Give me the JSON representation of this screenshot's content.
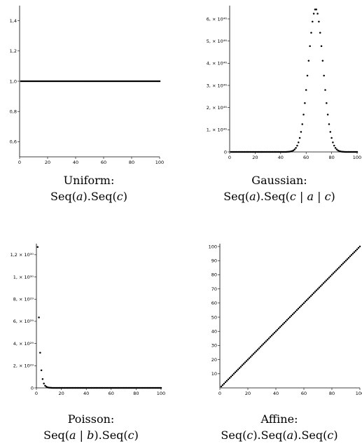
{
  "chart_data": [
    {
      "type": "scatter",
      "xlim": [
        0,
        100
      ],
      "ylim": [
        0.5,
        1.5
      ],
      "x_ticks": [
        "0",
        "20",
        "40",
        "60",
        "80",
        "100"
      ],
      "y_ticks": [
        "0,6",
        "0,8",
        "1,0",
        "1,2",
        "1,4"
      ],
      "y_tick_values": [
        0.6,
        0.8,
        1.0,
        1.2,
        1.4
      ],
      "series": [
        {
          "x_range": [
            1,
            100
          ],
          "formula": "constant",
          "value": 1.0
        }
      ],
      "caption_name": "Uniform:",
      "caption_formula": [
        {
          "t": "Seq("
        },
        {
          "t": "a",
          "i": true
        },
        {
          "t": ").Seq("
        },
        {
          "t": "c",
          "i": true
        },
        {
          "t": ")"
        }
      ]
    },
    {
      "type": "scatter",
      "xlim": [
        0,
        100
      ],
      "ylim": [
        0,
        6.6e+46
      ],
      "x_ticks": [
        "0",
        "20",
        "40",
        "60",
        "80",
        "100"
      ],
      "y_ticks": [
        "0",
        "1, × 10⁴⁶",
        "2, × 10⁴⁶",
        "3, × 10⁴⁶",
        "4, × 10⁴⁶",
        "5, × 10⁴⁶",
        "6, × 10⁴⁶"
      ],
      "y_tick_values": [
        0,
        1e+46,
        2e+46,
        3e+46,
        4e+46,
        5e+46,
        6e+46
      ],
      "series": [
        {
          "x_range": [
            1,
            100
          ],
          "formula": "gaussian",
          "peak_x": 67.5,
          "peak_y": 6.45e+46,
          "sigma": 5.8
        }
      ],
      "caption_name": "Gaussian:",
      "caption_formula": [
        {
          "t": "Seq("
        },
        {
          "t": "a",
          "i": true
        },
        {
          "t": ").Seq("
        },
        {
          "t": "c",
          "i": true
        },
        {
          "t": " | "
        },
        {
          "t": "a",
          "i": true
        },
        {
          "t": " | "
        },
        {
          "t": "c",
          "i": true
        },
        {
          "t": ")"
        }
      ]
    },
    {
      "type": "scatter",
      "xlim": [
        0,
        100
      ],
      "ylim": [
        0,
        1.3e+30
      ],
      "x_ticks": [
        "0",
        "20",
        "40",
        "60",
        "80",
        "100"
      ],
      "y_ticks": [
        "0",
        "2, × 10²⁹",
        "4, × 10²⁹",
        "6, × 10²⁹",
        "8, × 10²⁹",
        "1, × 10³⁰",
        "1,2 × 10³⁰"
      ],
      "y_tick_values": [
        0,
        2e+29,
        4e+29,
        6e+29,
        8e+29,
        1e+30,
        1.2e+30
      ],
      "series": [
        {
          "x_range": [
            1,
            100
          ],
          "formula": "decay",
          "y0": 1.27e+30,
          "ratio": 0.5
        }
      ],
      "caption_name": "Poisson:",
      "caption_formula": [
        {
          "t": "Seq("
        },
        {
          "t": "a",
          "i": true
        },
        {
          "t": " | "
        },
        {
          "t": "b",
          "i": true
        },
        {
          "t": ").Seq("
        },
        {
          "t": "c",
          "i": true
        },
        {
          "t": ")"
        }
      ]
    },
    {
      "type": "scatter",
      "xlim": [
        0,
        100
      ],
      "ylim": [
        0,
        102
      ],
      "x_ticks": [
        "0",
        "20",
        "40",
        "60",
        "80",
        "100"
      ],
      "y_ticks": [
        "10",
        "20",
        "30",
        "40",
        "50",
        "60",
        "70",
        "80",
        "90",
        "100"
      ],
      "y_tick_values": [
        10,
        20,
        30,
        40,
        50,
        60,
        70,
        80,
        90,
        100
      ],
      "series": [
        {
          "x_range": [
            1,
            100
          ],
          "formula": "identity"
        }
      ],
      "caption_name": "Affine:",
      "caption_formula": [
        {
          "t": "Seq("
        },
        {
          "t": "c",
          "i": true
        },
        {
          "t": ").Seq("
        },
        {
          "t": "a",
          "i": true
        },
        {
          "t": ").Seq("
        },
        {
          "t": "c",
          "i": true
        },
        {
          "t": ")"
        }
      ]
    }
  ]
}
